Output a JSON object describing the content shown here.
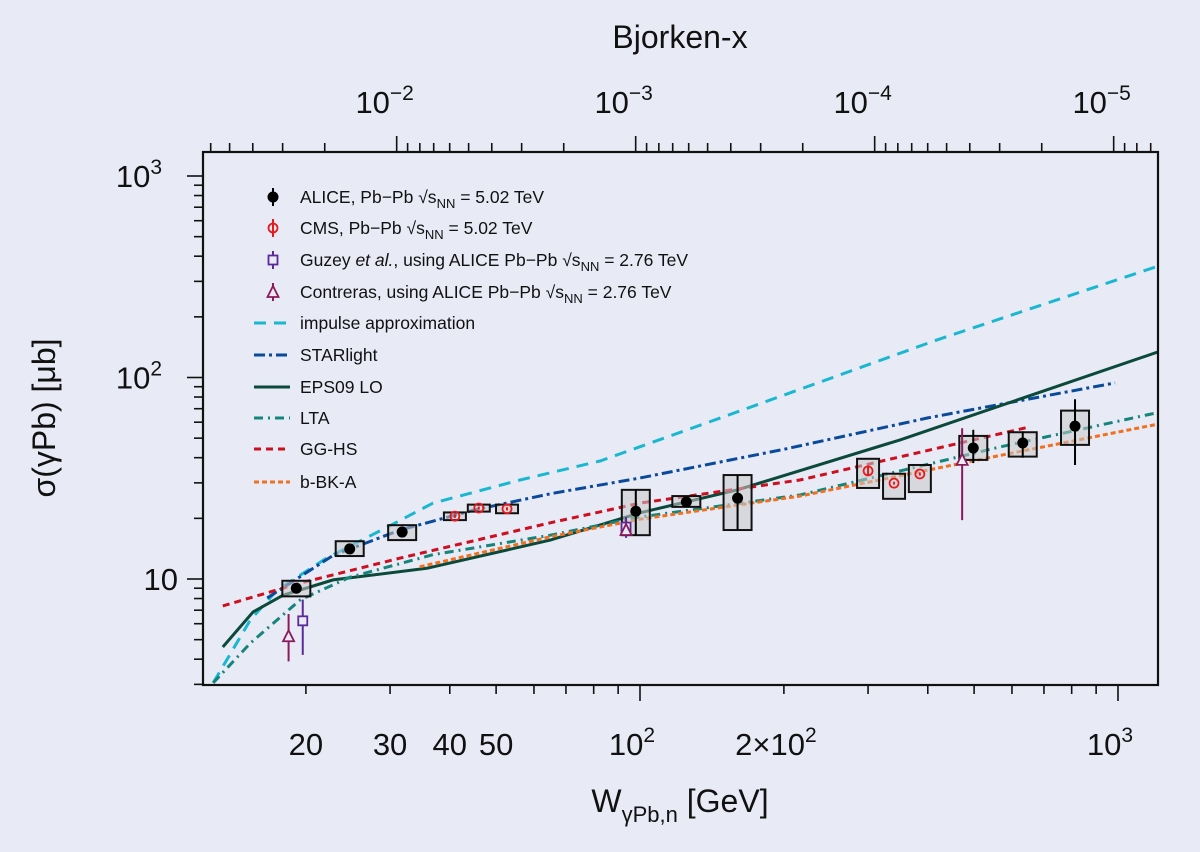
{
  "chart_data": {
    "type": "scatter",
    "xlabel": {
      "main": "W",
      "sub": "γPb,n",
      "post": " [GeV]"
    },
    "ylabel": "σ(γPb) [μb]",
    "top_xlabel": "Bjorken-x",
    "xscale": "log",
    "yscale": "log",
    "xlim": [
      12.2,
      1213
    ],
    "ylim": [
      2.98,
      1315
    ],
    "jpsi_mass_gev": 3.097,
    "x_ticks": [
      {
        "v": 20,
        "text": "20",
        "sup": ""
      },
      {
        "v": 30,
        "text": "30",
        "sup": ""
      },
      {
        "v": 40,
        "text": "40",
        "sup": ""
      },
      {
        "v": 50,
        "text": "50",
        "sup": ""
      },
      {
        "v": 100,
        "text": "10",
        "sup": "2"
      },
      {
        "v": 200,
        "text": "2×10",
        "sup": "2"
      },
      {
        "v": 1000,
        "text": "10",
        "sup": "3"
      }
    ],
    "y_ticks": [
      {
        "v": 10,
        "text": "10",
        "sup": ""
      },
      {
        "v": 100,
        "text": "10",
        "sup": "2"
      },
      {
        "v": 1000,
        "text": "10",
        "sup": "3"
      }
    ],
    "top_ticks": [
      {
        "v": 0.01,
        "text": "10",
        "sup": "−2"
      },
      {
        "v": 0.001,
        "text": "10",
        "sup": "−3"
      },
      {
        "v": 0.0001,
        "text": "10",
        "sup": "−4"
      },
      {
        "v": 1e-05,
        "text": "10",
        "sup": "−5"
      }
    ],
    "legend_position": "top-left",
    "series": [
      {
        "name": "ALICE",
        "kind": "points",
        "marker": "dot",
        "color": "#000000",
        "legend": {
          "pre": "ALICE, Pb−Pb ",
          "italic": "",
          "mid": "",
          "energy": " = 5.02 TeV"
        },
        "points": [
          {
            "x": 19.1,
            "y": 9.0,
            "stat": [
              8.8,
              9.2
            ],
            "sys": [
              8.2,
              9.8
            ]
          },
          {
            "x": 24.7,
            "y": 14.1,
            "stat": [
              13.8,
              14.4
            ],
            "sys": [
              13.0,
              15.4
            ]
          },
          {
            "x": 31.8,
            "y": 17.1,
            "stat": [
              16.8,
              17.4
            ],
            "sys": [
              15.6,
              18.5
            ]
          },
          {
            "x": 98,
            "y": 21.7,
            "stat": [
              16.5,
              27.7
            ],
            "sys": [
              16.5,
              27.7
            ]
          },
          {
            "x": 125,
            "y": 24.1,
            "stat": [
              23.0,
              25.3
            ],
            "sys": [
              22.8,
              25.8
            ]
          },
          {
            "x": 160,
            "y": 25.2,
            "stat": [
              17.5,
              32.8
            ],
            "sys": [
              17.5,
              32.8
            ]
          },
          {
            "x": 498,
            "y": 44.7,
            "stat": [
              37.6,
              55.0
            ],
            "sys": [
              39.0,
              51.3
            ]
          },
          {
            "x": 632,
            "y": 47.3,
            "stat": [
              40.0,
              54.0
            ],
            "sys": [
              40.5,
              53.5
            ]
          },
          {
            "x": 813,
            "y": 57.4,
            "stat": [
              36.8,
              78.0
            ],
            "sys": [
              46.3,
              68.5
            ]
          }
        ]
      },
      {
        "name": "CMS",
        "kind": "points",
        "marker": "circle",
        "color": "#e8191c",
        "legend": {
          "pre": "CMS, Pb−Pb ",
          "italic": "",
          "mid": "",
          "energy": " = 5.02 TeV"
        },
        "points": [
          {
            "x": 41,
            "y": 20.5,
            "stat": [
              20.1,
              20.9
            ],
            "sys": [
              19.6,
              21.4
            ]
          },
          {
            "x": 46,
            "y": 22.5,
            "stat": [
              22.1,
              22.9
            ],
            "sys": [
              21.6,
              23.4
            ]
          },
          {
            "x": 52.7,
            "y": 22.3,
            "stat": [
              21.9,
              22.7
            ],
            "sys": [
              21.2,
              23.4
            ]
          },
          {
            "x": 300,
            "y": 34.4,
            "stat": [
              32.6,
              36.2
            ],
            "sys": [
              28.3,
              39.5
            ]
          },
          {
            "x": 340,
            "y": 29.9,
            "stat": [
              29.4,
              30.4
            ],
            "sys": [
              25.0,
              33.3
            ]
          },
          {
            "x": 385,
            "y": 33.2,
            "stat": [
              32.6,
              33.8
            ],
            "sys": [
              27.0,
              36.8
            ]
          }
        ]
      },
      {
        "name": "Guzey et al.",
        "kind": "points",
        "marker": "square",
        "color": "#5b2a9a",
        "legend": {
          "pre": "Guzey ",
          "italic": "et al.",
          "mid": ", using ALICE Pb−Pb ",
          "energy": " = 2.76 TeV"
        },
        "points": [
          {
            "x": 19.7,
            "y": 6.2,
            "stat": [
              4.2,
              7.9
            ]
          },
          {
            "x": 93.5,
            "y": 18.1,
            "stat": [
              16.0,
              20.3
            ]
          }
        ]
      },
      {
        "name": "Contreras",
        "kind": "points",
        "marker": "triangle",
        "color": "#8a1a5a",
        "legend": {
          "pre": "Contreras, using ALICE Pb−Pb ",
          "italic": "",
          "mid": "",
          "energy": " = 2.76 TeV"
        },
        "points": [
          {
            "x": 18.4,
            "y": 5.2,
            "stat": [
              3.9,
              6.7
            ]
          },
          {
            "x": 93.5,
            "y": 17.5,
            "stat": [
              16.5,
              18.5
            ]
          },
          {
            "x": 472,
            "y": 39,
            "stat": [
              19.6,
              56
            ]
          }
        ]
      },
      {
        "name": "impulse approximation",
        "kind": "line",
        "color": "#1ab8d0",
        "dash": "12,8",
        "legend": {
          "pre": "impulse approximation"
        },
        "x": [
          12.8,
          15.3,
          17.4,
          22.1,
          29.6,
          36.9,
          56.1,
          82.5,
          150,
          416,
          1213
        ],
        "y": [
          3.05,
          6.26,
          8.8,
          12.7,
          18.1,
          23.8,
          31.0,
          38.5,
          64,
          153,
          357
        ]
      },
      {
        "name": "STARlight",
        "kind": "line",
        "color": "#0a4a9a",
        "dash": "11,4,3,4",
        "legend": {
          "pre": "STARlight"
        },
        "x": [
          16.6,
          22.8,
          31.5,
          45,
          65,
          100,
          200,
          400,
          986
        ],
        "y": [
          8.05,
          13.1,
          17.5,
          22,
          26.5,
          31.7,
          44,
          63,
          94
        ]
      },
      {
        "name": "EPS09 LO",
        "kind": "line",
        "color": "#0b4a3a",
        "dash": "",
        "legend": {
          "pre": "EPS09 LO"
        },
        "x": [
          13.4,
          15.5,
          17.9,
          22.8,
          35.8,
          64.9,
          100,
          160,
          350,
          1213
        ],
        "y": [
          4.6,
          6.86,
          8.3,
          9.9,
          11.3,
          15.6,
          21.3,
          27.7,
          49,
          134
        ]
      },
      {
        "name": "LTA",
        "kind": "line",
        "color": "#13857a",
        "dash": "9,5,2,5",
        "legend": {
          "pre": "LTA"
        },
        "x": [
          12.8,
          15.3,
          19.5,
          24.7,
          36.9,
          64.9,
          100,
          216,
          566,
          1213
        ],
        "y": [
          3.05,
          4.8,
          7.9,
          10.2,
          13.2,
          16.5,
          20.3,
          26.1,
          45.2,
          67
        ]
      },
      {
        "name": "GG-HS",
        "kind": "line",
        "color": "#cc1020",
        "dash": "7,5",
        "legend": {
          "pre": "GG-HS"
        },
        "x": [
          13.4,
          19.5,
          31.5,
          64.9,
          100,
          216,
          652
        ],
        "y": [
          7.35,
          9.55,
          12.7,
          19.0,
          23.8,
          31,
          56.8
        ]
      },
      {
        "name": "b-BK-A",
        "kind": "line",
        "color": "#f07020",
        "dash": "5,3",
        "legend": {
          "pre": "b-BK-A"
        },
        "x": [
          34.6,
          64.9,
          100,
          216,
          566,
          1213
        ],
        "y": [
          11.5,
          16.2,
          19.8,
          25.8,
          41,
          58.7
        ]
      }
    ],
    "legend_sqrt": {
      "root": "√s",
      "sub": "NN"
    }
  }
}
